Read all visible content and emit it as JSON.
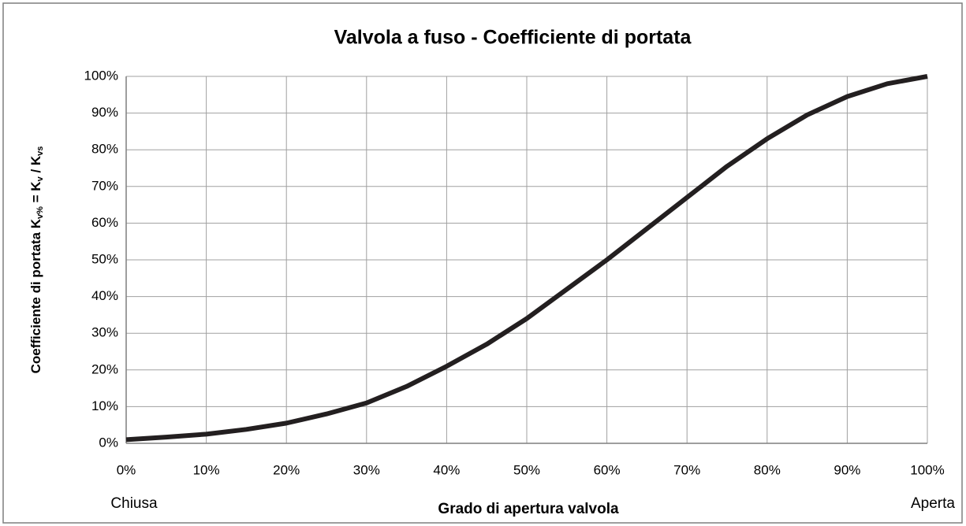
{
  "chart_data": {
    "type": "line",
    "title": "Valvola a fuso - Coefficiente di portata",
    "x_label": "Grado di apertura valvola",
    "y_label_parts": [
      "Coefficiente  di portata K",
      "v%",
      " = K",
      "v",
      " / K",
      "vs"
    ],
    "annotations": [
      "Chiusa",
      "Aperta"
    ],
    "x": [
      0,
      5,
      10,
      15,
      20,
      25,
      30,
      35,
      40,
      45,
      50,
      55,
      60,
      65,
      70,
      75,
      80,
      85,
      90,
      95,
      100
    ],
    "series": [
      {
        "color": "#231f20",
        "values": [
          1,
          1.7,
          2.5,
          3.8,
          5.5,
          8,
          11,
          15.5,
          21,
          27,
          34,
          42,
          50,
          58.5,
          67,
          75.5,
          83,
          89.5,
          94.5,
          98,
          100
        ]
      }
    ],
    "xlim": [
      0,
      100
    ],
    "xticks": [
      {
        "value": 0,
        "label": "0%"
      },
      {
        "value": 10,
        "label": "10%"
      },
      {
        "value": 20,
        "label": "20%"
      },
      {
        "value": 30,
        "label": "30%"
      },
      {
        "value": 40,
        "label": "40%"
      },
      {
        "value": 50,
        "label": "50%"
      },
      {
        "value": 60,
        "label": "60%"
      },
      {
        "value": 70,
        "label": "70%"
      },
      {
        "value": 80,
        "label": "80%"
      },
      {
        "value": 90,
        "label": "90%"
      },
      {
        "value": 100,
        "label": "100%"
      }
    ],
    "ylim": [
      0,
      100
    ],
    "yticks": [
      {
        "value": 0,
        "label": "0%"
      },
      {
        "value": 10,
        "label": "10%"
      },
      {
        "value": 20,
        "label": "20%"
      },
      {
        "value": 30,
        "label": "30%"
      },
      {
        "value": 40,
        "label": "40%"
      },
      {
        "value": 50,
        "label": "50%"
      },
      {
        "value": 60,
        "label": "60%"
      },
      {
        "value": 70,
        "label": "70%"
      },
      {
        "value": 80,
        "label": "80%"
      },
      {
        "value": 90,
        "label": "90%"
      },
      {
        "value": 100,
        "label": "100%"
      }
    ],
    "grid": true
  }
}
